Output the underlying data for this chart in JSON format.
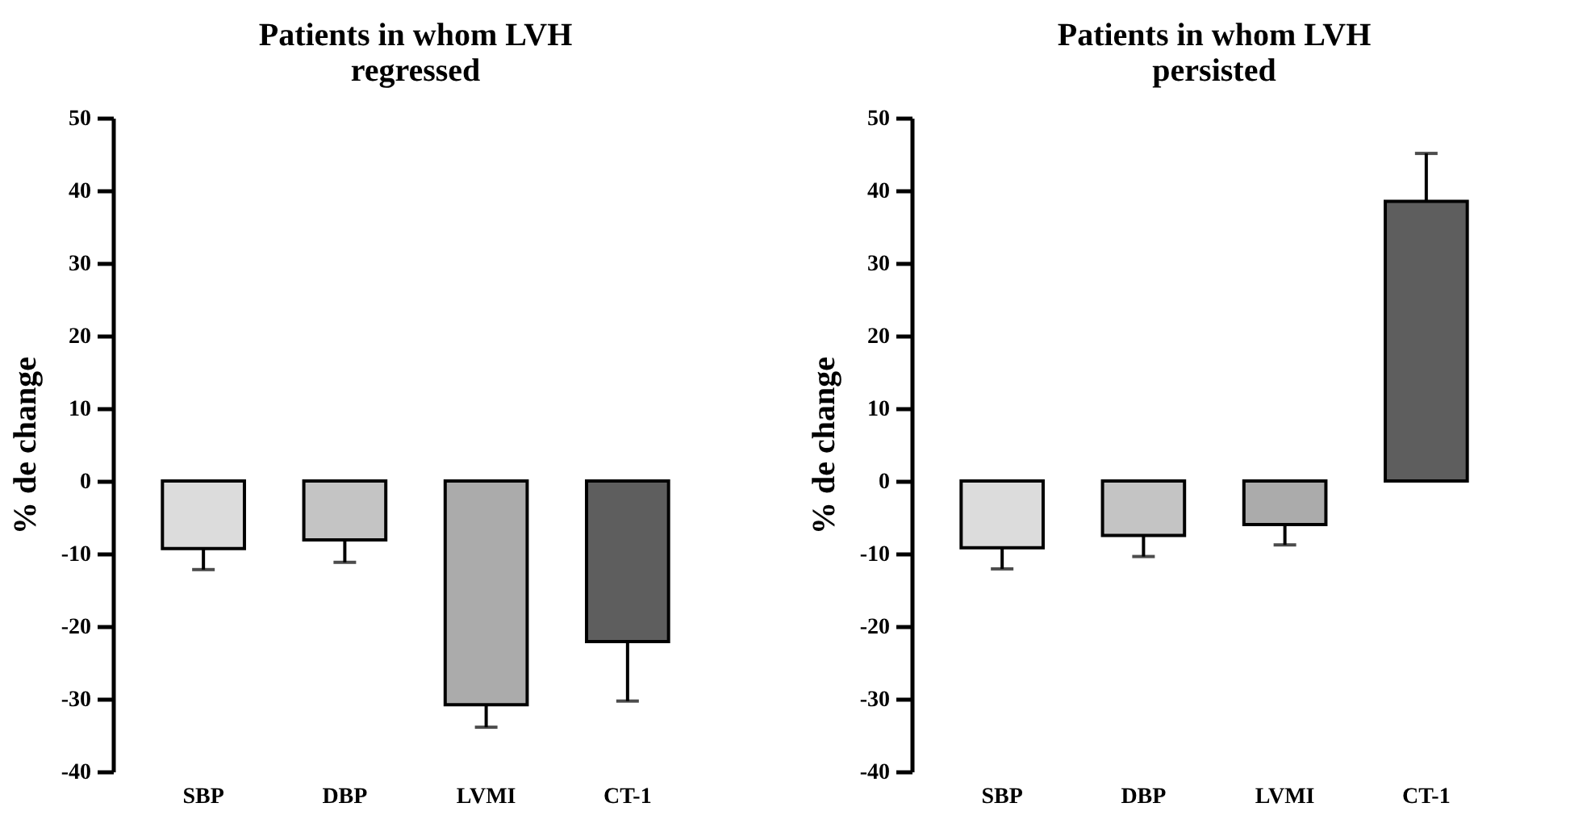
{
  "chart_data": [
    {
      "type": "bar",
      "title": "Patients in whom LVH regressed",
      "ylabel": "% de change",
      "categories": [
        "SBP",
        "DBP",
        "LVMI",
        "CT-1"
      ],
      "values": [
        -9.3,
        -8.1,
        -30.8,
        -22.1
      ],
      "colors": [
        "#dcdcdc",
        "#c4c4c4",
        "#ababab",
        "#5e5e5e"
      ],
      "errors": [
        [
          -12.2,
          -9.3
        ],
        [
          -11.2,
          -8.1
        ],
        [
          -33.9,
          -30.8
        ],
        [
          -30.3,
          -22.1
        ]
      ],
      "ylim": [
        -40,
        50
      ],
      "yticks": [
        -40,
        -30,
        -20,
        -10,
        0,
        10,
        20,
        30,
        40,
        50
      ],
      "grid": false
    },
    {
      "type": "bar",
      "title": "Patients in whom LVH persisted",
      "ylabel": "% de change",
      "categories": [
        "SBP",
        "DBP",
        "LVMI",
        "CT-1"
      ],
      "values": [
        -9.2,
        -7.5,
        -6.0,
        38.5
      ],
      "colors": [
        "#dcdcdc",
        "#c4c4c4",
        "#ababab",
        "#5e5e5e"
      ],
      "errors": [
        [
          -12.1,
          -9.2
        ],
        [
          -10.4,
          -7.5
        ],
        [
          -8.8,
          -6.0
        ],
        [
          38.5,
          45.1
        ]
      ],
      "ylim": [
        -40,
        50
      ],
      "yticks": [
        -40,
        -30,
        -20,
        -10,
        0,
        10,
        20,
        30,
        40,
        50
      ],
      "grid": false
    }
  ]
}
